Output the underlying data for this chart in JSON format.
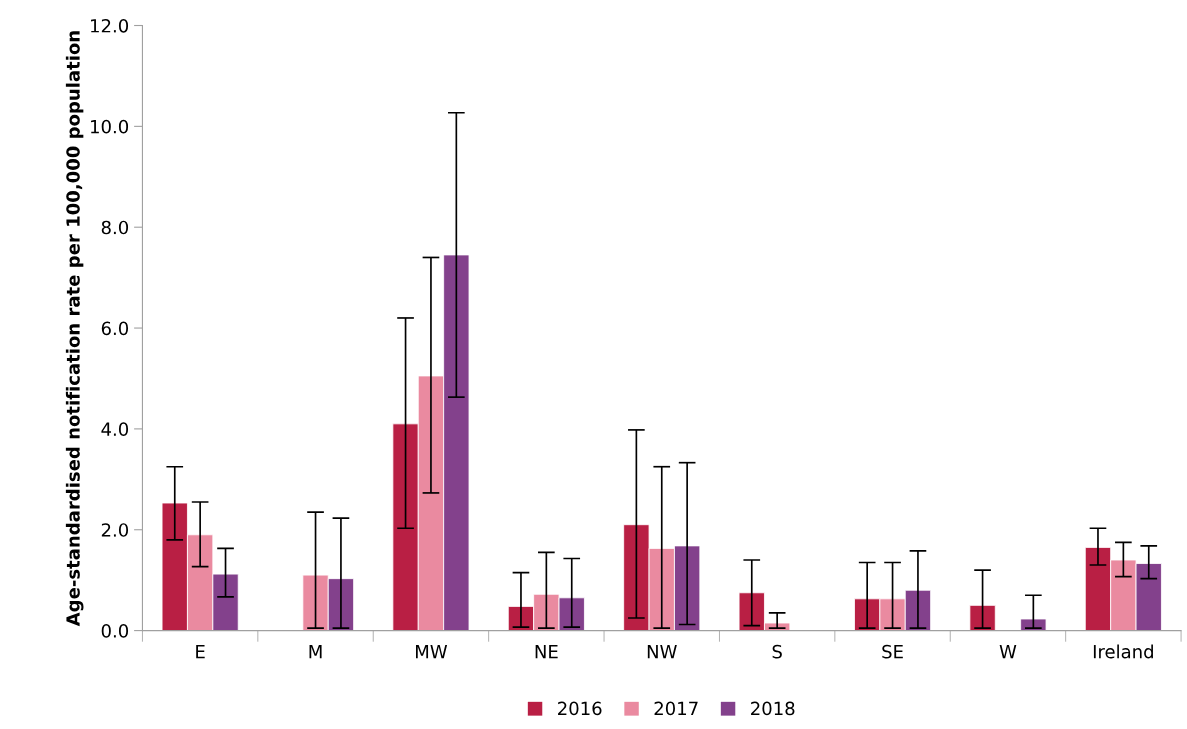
{
  "chart_data": {
    "type": "bar",
    "ylabel": "Age-standardised notification rate per 100,000 population",
    "categories": [
      "E",
      "M",
      "MW",
      "NE",
      "NW",
      "S",
      "SE",
      "W",
      "Ireland"
    ],
    "series": [
      {
        "name": "2016",
        "color": "#b91f44",
        "values": [
          2.53,
          null,
          4.1,
          0.48,
          2.1,
          0.75,
          0.63,
          0.5,
          1.65
        ],
        "errors": [
          [
            1.8,
            3.25
          ],
          null,
          [
            2.03,
            6.2
          ],
          [
            0.07,
            1.15
          ],
          [
            0.25,
            3.98
          ],
          [
            0.1,
            1.4
          ],
          [
            0.05,
            1.35
          ],
          [
            0.05,
            1.2
          ],
          [
            1.3,
            2.03
          ]
        ]
      },
      {
        "name": "2017",
        "color": "#ea8aa0",
        "values": [
          1.9,
          1.1,
          5.05,
          0.72,
          1.63,
          0.15,
          0.63,
          null,
          1.4
        ],
        "errors": [
          [
            1.27,
            2.55
          ],
          [
            0.05,
            2.35
          ],
          [
            2.73,
            7.4
          ],
          [
            0.05,
            1.55
          ],
          [
            0.05,
            3.25
          ],
          [
            0.05,
            0.35
          ],
          [
            0.05,
            1.35
          ],
          null,
          [
            1.07,
            1.75
          ]
        ]
      },
      {
        "name": "2018",
        "color": "#83418c",
        "values": [
          1.12,
          1.03,
          7.45,
          0.65,
          1.68,
          null,
          0.8,
          0.23,
          1.33
        ],
        "errors": [
          [
            0.67,
            1.63
          ],
          [
            0.05,
            2.23
          ],
          [
            4.63,
            10.27
          ],
          [
            0.07,
            1.43
          ],
          [
            0.12,
            3.33
          ],
          null,
          [
            0.05,
            1.58
          ],
          [
            0.05,
            0.7
          ],
          [
            1.03,
            1.68
          ]
        ]
      }
    ],
    "ylim": [
      0,
      12
    ],
    "yticks": [
      {
        "value": 0,
        "label": "0.0"
      },
      {
        "value": 2,
        "label": "2.0"
      },
      {
        "value": 4,
        "label": "4.0"
      },
      {
        "value": 6,
        "label": "6.0"
      },
      {
        "value": 8,
        "label": "8.0"
      },
      {
        "value": 10,
        "label": "10.0"
      },
      {
        "value": 12,
        "label": "12.0"
      }
    ],
    "legend": "bottom",
    "grid": false
  }
}
